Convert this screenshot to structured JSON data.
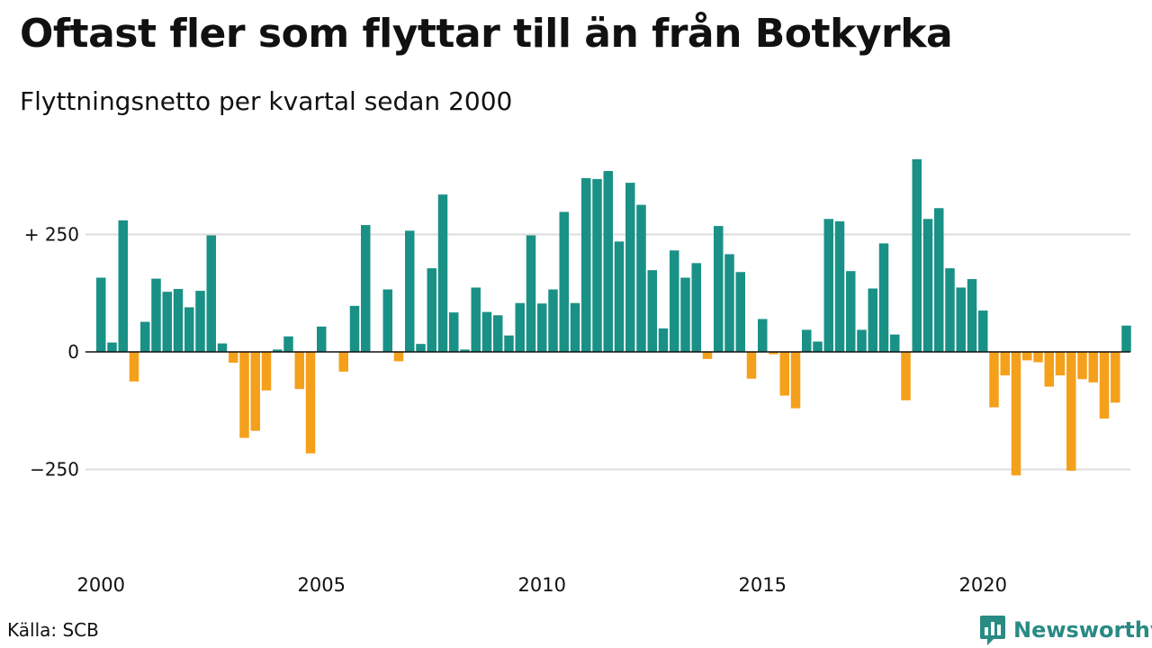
{
  "title": "Oftast fler som flyttar till än från Botkyrka",
  "subtitle": "Flyttningsnetto per kvartal sedan 2000",
  "source": "Källa: SCB",
  "brand": "Newsworthy",
  "colors": {
    "positive": "#1a9186",
    "negative": "#f5a01b",
    "brand": "#2a8a84"
  },
  "chart_data": {
    "type": "bar",
    "x_start_year": 2000,
    "periods_per_year": 4,
    "x_tick_labels": [
      "2000",
      "2005",
      "2010",
      "2015",
      "2020"
    ],
    "y_tick_labels": [
      {
        "value": 250,
        "label": "+ 250"
      },
      {
        "value": 0,
        "label": "0"
      },
      {
        "value": -250,
        "label": "−250"
      }
    ],
    "ylim": [
      -420,
      420
    ],
    "grid": true,
    "values": [
      158,
      20,
      280,
      -63,
      64,
      156,
      128,
      134,
      95,
      130,
      248,
      18,
      -23,
      -183,
      -168,
      -82,
      5,
      33,
      -79,
      -216,
      54,
      0,
      -42,
      98,
      270,
      0,
      133,
      -20,
      258,
      17,
      178,
      335,
      84,
      5,
      137,
      85,
      78,
      35,
      104,
      248,
      103,
      133,
      298,
      104,
      370,
      368,
      385,
      235,
      360,
      313,
      174,
      50,
      216,
      158,
      189,
      -15,
      268,
      208,
      170,
      -57,
      70,
      -5,
      -93,
      -120,
      47,
      22,
      283,
      278,
      172,
      47,
      135,
      231,
      37,
      -103,
      410,
      283,
      306,
      178,
      137,
      155,
      88,
      -118,
      -50,
      -263,
      -18,
      -22,
      -74,
      -50,
      -253,
      -58,
      -65,
      -142,
      -108,
      56
    ]
  }
}
